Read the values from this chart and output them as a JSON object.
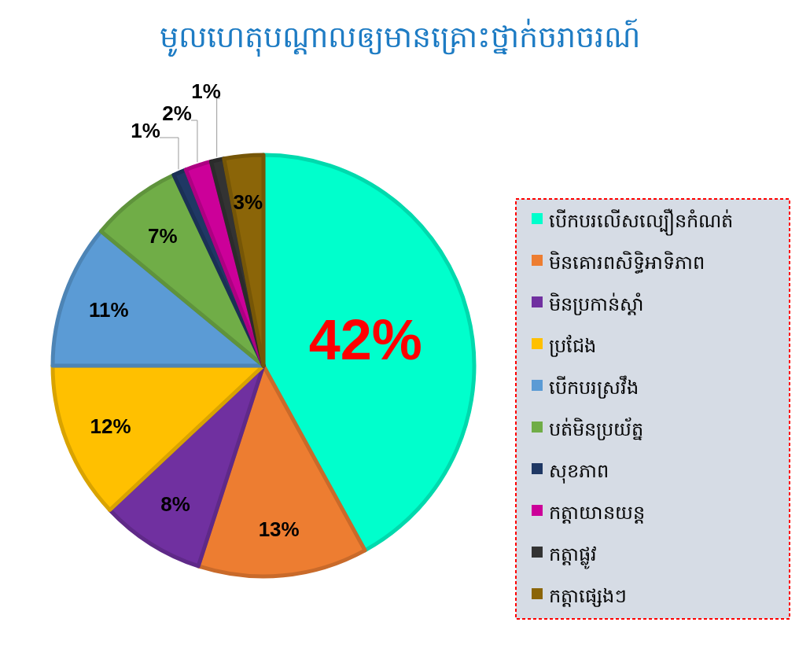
{
  "chart_data": {
    "type": "pie",
    "title": "មូលហេតុបណ្តាលឲ្យមានគ្រោះថ្នាក់ចរាចរណ៍",
    "categories": [
      "បើកបរលើសល្បឿនកំណត់",
      "មិនគោរពសិទ្ធិអាទិភាព",
      "មិនប្រកាន់ស្តាំ",
      "ប្រជែង",
      "បើកបរស្រវឹង",
      "បត់មិនប្រយ័ត្ន",
      "សុខភាព",
      "កត្តាយានយន្ត",
      "កត្តាផ្លូវ",
      "កត្តាផ្សេងៗ"
    ],
    "values": [
      42,
      13,
      8,
      12,
      11,
      7,
      1,
      2,
      1,
      3
    ],
    "colors": [
      "#00ffcc",
      "#ed7d31",
      "#7030a0",
      "#ffc000",
      "#5b9bd5",
      "#70ad47",
      "#1f3864",
      "#cc0099",
      "#333333",
      "#8b6508"
    ],
    "value_labels": [
      "42%",
      "13%",
      "8%",
      "12%",
      "11%",
      "7%",
      "1%",
      "2%",
      "1%",
      "3%"
    ],
    "legend": "right"
  }
}
